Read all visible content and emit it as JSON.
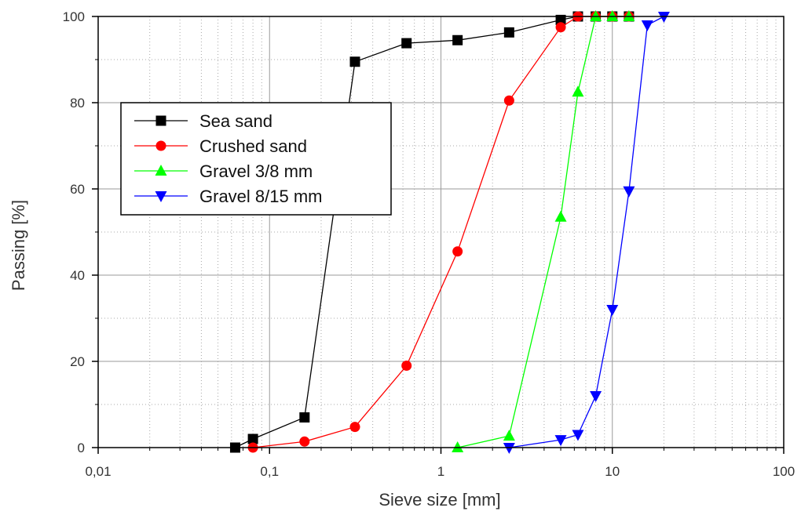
{
  "chart_data": {
    "type": "line",
    "xlabel": "Sieve size [mm]",
    "ylabel": "Passing [%]",
    "xscale": "log",
    "xlim": [
      0.01,
      100
    ],
    "ylim": [
      0,
      100
    ],
    "x_ticks": [
      0.01,
      0.1,
      1,
      10,
      100
    ],
    "x_tick_labels": [
      "0,01",
      "0,1",
      "1",
      "10",
      "100"
    ],
    "y_ticks": [
      0,
      20,
      40,
      60,
      80,
      100
    ],
    "y_tick_labels": [
      "0",
      "20",
      "40",
      "60",
      "80",
      "100"
    ],
    "grid": true,
    "legend_position": "upper-left",
    "series": [
      {
        "name": "Sea sand",
        "color": "#000000",
        "marker": "square",
        "points": [
          [
            0.063,
            0
          ],
          [
            0.08,
            2
          ],
          [
            0.16,
            7
          ],
          [
            0.315,
            89.5
          ],
          [
            0.63,
            93.8
          ],
          [
            1.25,
            94.5
          ],
          [
            2.5,
            96.3
          ],
          [
            5,
            99.2
          ],
          [
            6.3,
            100
          ],
          [
            8,
            100
          ],
          [
            10,
            100
          ],
          [
            12.5,
            100
          ]
        ]
      },
      {
        "name": "Crushed sand",
        "color": "#ff0000",
        "marker": "circle",
        "points": [
          [
            0.08,
            0
          ],
          [
            0.16,
            1.4
          ],
          [
            0.315,
            4.8
          ],
          [
            0.63,
            19
          ],
          [
            1.25,
            45.5
          ],
          [
            2.5,
            80.5
          ],
          [
            5,
            97.5
          ],
          [
            6.3,
            100
          ],
          [
            8,
            100
          ],
          [
            10,
            100
          ],
          [
            12.5,
            100
          ]
        ]
      },
      {
        "name": "Gravel 3/8 mm",
        "color": "#00ff00",
        "marker": "triangle-up",
        "points": [
          [
            1.25,
            0
          ],
          [
            2.5,
            2.7
          ],
          [
            5,
            53.5
          ],
          [
            6.3,
            82.5
          ],
          [
            8,
            100
          ],
          [
            10,
            100
          ],
          [
            12.5,
            100
          ]
        ]
      },
      {
        "name": "Gravel 8/15 mm",
        "color": "#0000ff",
        "marker": "triangle-down",
        "points": [
          [
            2.5,
            0
          ],
          [
            5,
            1.8
          ],
          [
            6.3,
            3
          ],
          [
            8,
            12
          ],
          [
            10,
            32
          ],
          [
            12.5,
            59.5
          ],
          [
            16,
            98
          ],
          [
            20,
            100
          ]
        ]
      }
    ]
  }
}
